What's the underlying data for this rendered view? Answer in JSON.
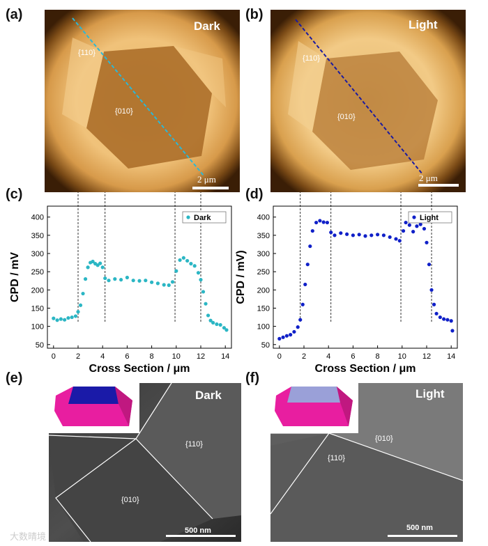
{
  "panels": {
    "a": {
      "label": "(a)",
      "mode": "Dark",
      "facet110": "{110}",
      "facet010": "{010}",
      "scale": "2 μm"
    },
    "b": {
      "label": "(b)",
      "mode": "Light",
      "facet110": "{110}",
      "facet010": "{010}",
      "scale": "2 μm"
    },
    "c": {
      "label": "(c)"
    },
    "d": {
      "label": "(d)"
    },
    "e": {
      "label": "(e)",
      "mode": "Dark",
      "facet110": "{110}",
      "facet010": "{010}",
      "scale": "500 nm"
    },
    "f": {
      "label": "(f)",
      "mode": "Light",
      "facet110": "{110}",
      "facet010": "{010}",
      "scale": "500 nm"
    }
  },
  "watermark": "大数晴境",
  "colors": {
    "dark_series": "#2bb6c4",
    "light_series": "#1020c8",
    "afm_dark_line": "#2ab8d8",
    "afm_light_line": "#1a1aa0"
  },
  "chart_data": [
    {
      "type": "scatter",
      "panel": "c",
      "xlabel": "Cross Section / μm",
      "ylabel": "CPD / mV",
      "xlim": [
        -0.5,
        14.5
      ],
      "ylim": [
        40,
        430
      ],
      "xticks": [
        "0",
        "2",
        "4",
        "6",
        "8",
        "10",
        "12",
        "14"
      ],
      "yticks": [
        "50",
        "100",
        "150",
        "200",
        "250",
        "300",
        "350",
        "400"
      ],
      "legend": "Dark",
      "legend_position": "top-right",
      "guide_lines_x": [
        2.0,
        4.2,
        9.9,
        12.0
      ],
      "series": [
        {
          "name": "Dark",
          "color": "#2bb6c4",
          "x": [
            0.0,
            0.3,
            0.6,
            0.9,
            1.2,
            1.5,
            1.8,
            2.0,
            2.2,
            2.4,
            2.6,
            2.8,
            3.0,
            3.2,
            3.4,
            3.6,
            3.8,
            4.0,
            4.2,
            4.5,
            5.0,
            5.5,
            6.0,
            6.5,
            7.0,
            7.5,
            8.0,
            8.5,
            9.0,
            9.4,
            9.7,
            10.0,
            10.3,
            10.6,
            10.9,
            11.2,
            11.5,
            11.8,
            12.0,
            12.2,
            12.4,
            12.6,
            12.8,
            13.0,
            13.3,
            13.6,
            13.9,
            14.1
          ],
          "y": [
            122,
            117,
            120,
            118,
            123,
            125,
            128,
            140,
            158,
            190,
            230,
            262,
            275,
            278,
            272,
            268,
            273,
            262,
            232,
            226,
            230,
            228,
            234,
            226,
            225,
            226,
            221,
            218,
            214,
            213,
            222,
            252,
            282,
            288,
            280,
            272,
            266,
            247,
            228,
            195,
            162,
            130,
            116,
            110,
            106,
            104,
            96,
            90
          ]
        }
      ]
    },
    {
      "type": "scatter",
      "panel": "d",
      "xlabel": "Cross Section / μm",
      "ylabel": "CPD / mV)",
      "xlim": [
        -0.5,
        14.5
      ],
      "ylim": [
        40,
        430
      ],
      "xticks": [
        "0",
        "2",
        "4",
        "6",
        "8",
        "10",
        "12",
        "14"
      ],
      "yticks": [
        "50",
        "100",
        "150",
        "200",
        "250",
        "300",
        "350",
        "400"
      ],
      "legend": "Light",
      "legend_position": "top-right",
      "guide_lines_x": [
        1.7,
        4.2,
        9.9,
        12.4
      ],
      "series": [
        {
          "name": "Light",
          "color": "#1020c8",
          "x": [
            0.0,
            0.3,
            0.6,
            0.9,
            1.2,
            1.5,
            1.7,
            1.9,
            2.1,
            2.3,
            2.5,
            2.7,
            3.0,
            3.3,
            3.6,
            3.9,
            4.2,
            4.5,
            5.0,
            5.5,
            6.0,
            6.5,
            7.0,
            7.5,
            8.0,
            8.5,
            9.0,
            9.5,
            9.8,
            10.1,
            10.3,
            10.6,
            10.9,
            11.2,
            11.5,
            11.8,
            12.0,
            12.2,
            12.4,
            12.6,
            12.8,
            13.1,
            13.4,
            13.7,
            14.0,
            14.1
          ],
          "y": [
            66,
            70,
            74,
            77,
            85,
            98,
            118,
            160,
            215,
            270,
            320,
            362,
            385,
            390,
            386,
            385,
            358,
            350,
            356,
            353,
            350,
            352,
            348,
            350,
            352,
            350,
            345,
            340,
            335,
            362,
            385,
            378,
            360,
            375,
            380,
            368,
            330,
            270,
            200,
            160,
            135,
            125,
            120,
            118,
            115,
            88
          ]
        }
      ]
    }
  ]
}
